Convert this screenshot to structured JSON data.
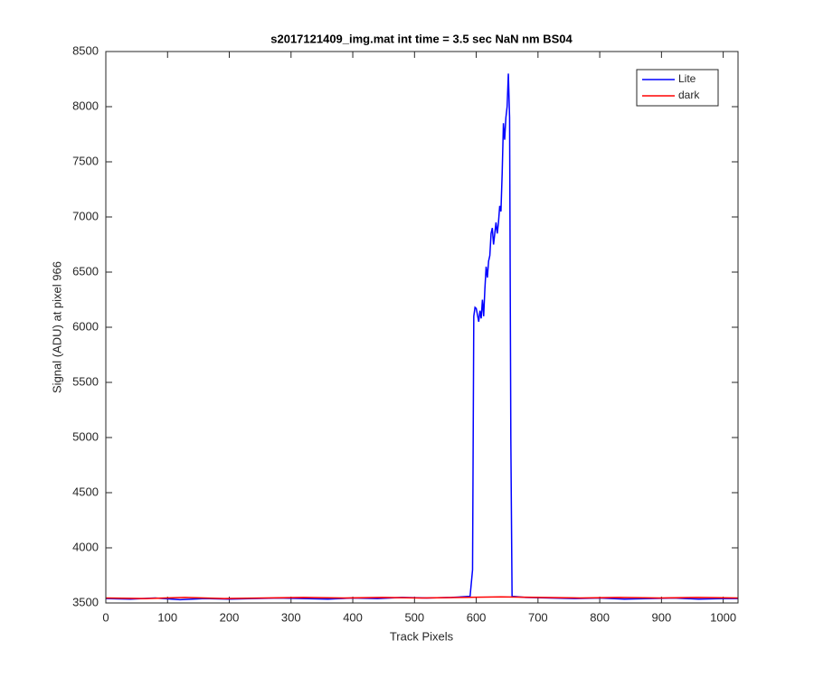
{
  "chart_data": {
    "type": "line",
    "title": "s2017121409_img.mat int time = 3.5 sec  NaN nm BS04",
    "xlabel": "Track Pixels",
    "ylabel": "Signal (ADU) at pixel 966",
    "xlim": [
      0,
      1024
    ],
    "ylim": [
      3500,
      8500
    ],
    "xticks": [
      0,
      100,
      200,
      300,
      400,
      500,
      600,
      700,
      800,
      900,
      1000
    ],
    "yticks": [
      3500,
      4000,
      4500,
      5000,
      5500,
      6000,
      6500,
      7000,
      7500,
      8000,
      8500
    ],
    "legend": "top-right",
    "series": [
      {
        "name": "Lite",
        "color": "#0000ff",
        "x": [
          0,
          40,
          80,
          120,
          160,
          200,
          240,
          280,
          320,
          360,
          400,
          440,
          480,
          520,
          560,
          590,
          594,
          596,
          598,
          600,
          604,
          606,
          608,
          610,
          612,
          614,
          616,
          618,
          620,
          622,
          624,
          626,
          628,
          630,
          632,
          634,
          636,
          638,
          640,
          642,
          644,
          646,
          648,
          650,
          652,
          654,
          656,
          658,
          680,
          720,
          760,
          800,
          840,
          880,
          920,
          960,
          1000,
          1024
        ],
        "values": [
          3540,
          3535,
          3545,
          3530,
          3540,
          3535,
          3540,
          3545,
          3540,
          3535,
          3545,
          3540,
          3550,
          3545,
          3550,
          3560,
          3800,
          6100,
          6180,
          6170,
          6050,
          6150,
          6080,
          6250,
          6100,
          6350,
          6550,
          6450,
          6600,
          6650,
          6850,
          6900,
          6750,
          6850,
          6950,
          6850,
          6950,
          7100,
          7050,
          7400,
          7850,
          7700,
          7900,
          8000,
          8300,
          7900,
          5000,
          3560,
          3550,
          3545,
          3540,
          3545,
          3535,
          3540,
          3545,
          3535,
          3540,
          3540
        ]
      },
      {
        "name": "dark",
        "color": "#ff0000",
        "x": [
          0,
          64,
          128,
          192,
          256,
          320,
          384,
          448,
          512,
          576,
          640,
          704,
          768,
          832,
          896,
          960,
          1024
        ],
        "values": [
          3545,
          3540,
          3550,
          3540,
          3545,
          3550,
          3545,
          3550,
          3545,
          3550,
          3555,
          3550,
          3545,
          3550,
          3545,
          3550,
          3545
        ]
      }
    ]
  }
}
